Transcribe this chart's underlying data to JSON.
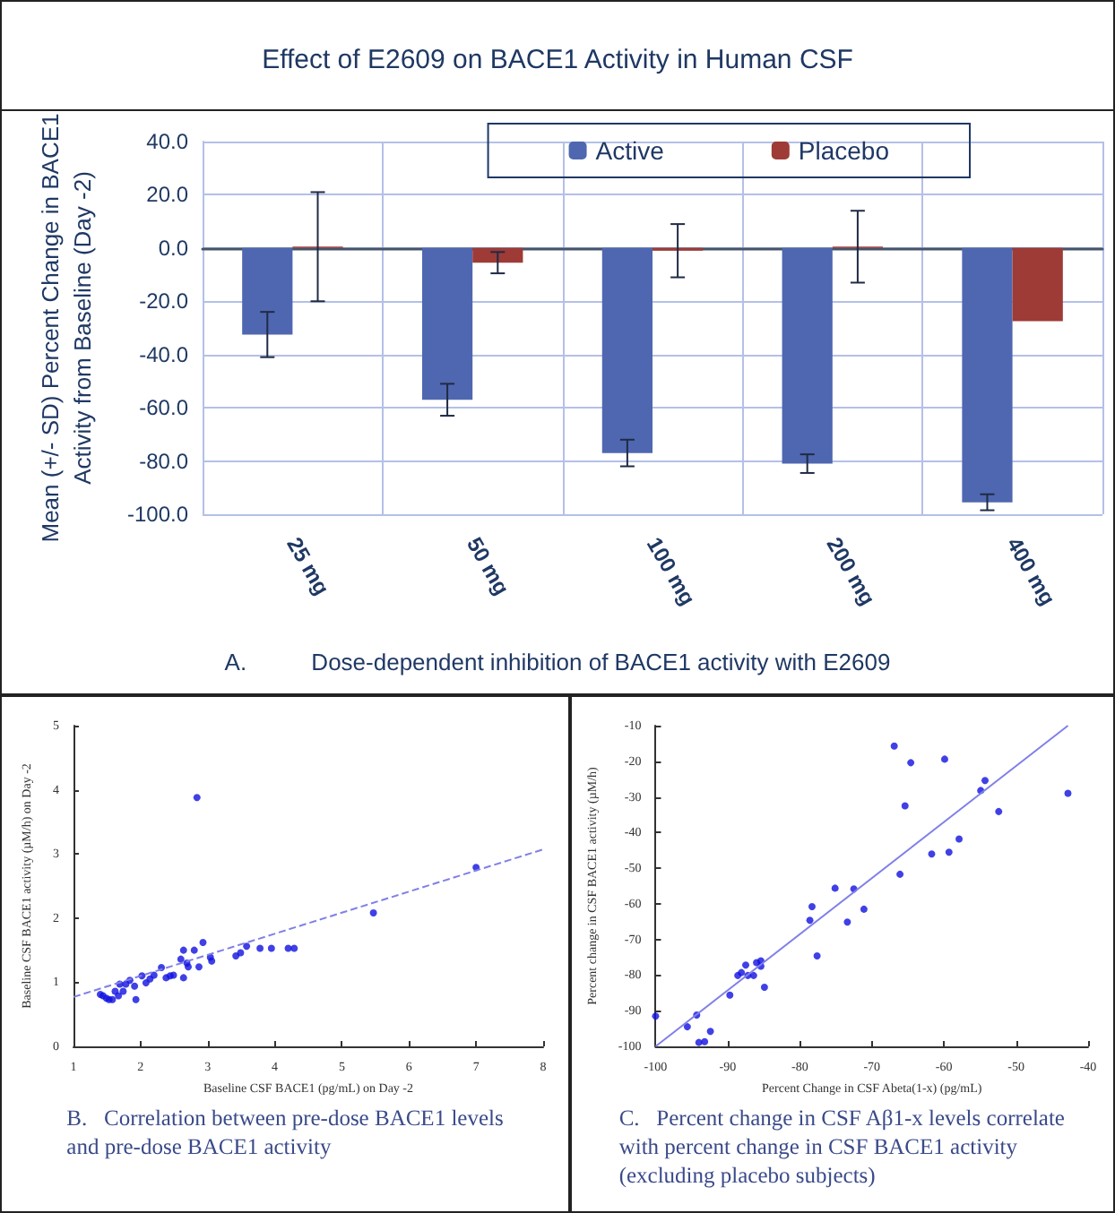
{
  "chart_data": [
    {
      "type": "bar",
      "title": "Effect of E2609 on BACE1 Activity in Human CSF",
      "ylabel": "Mean (+/- SD) Percent Change in BACE1\nActivity from Baseline (Day -2)",
      "categories": [
        "25 mg",
        "50 mg",
        "100 mg",
        "200 mg",
        "400 mg"
      ],
      "series": [
        {
          "name": "Active",
          "color": "#4f67b0",
          "values": [
            -32.5,
            -57,
            -77,
            -81,
            -95.5
          ],
          "errors": [
            8.5,
            6,
            5,
            3.5,
            3
          ]
        },
        {
          "name": "Placebo",
          "color": "#9e3b36",
          "values": [
            0.5,
            -5.5,
            -1,
            0.5,
            -27.5
          ],
          "errors": [
            20.5,
            4,
            10,
            13.5,
            null
          ]
        }
      ],
      "ylim": [
        -100,
        40
      ],
      "yticks": [
        {
          "value": -100,
          "label": "-100.0"
        },
        {
          "value": -80,
          "label": "-80.0"
        },
        {
          "value": -60,
          "label": "-60.0"
        },
        {
          "value": -40,
          "label": "-40.0"
        },
        {
          "value": -20,
          "label": "-20.0"
        },
        {
          "value": 0,
          "label": "0.0"
        },
        {
          "value": 20,
          "label": "20.0"
        },
        {
          "value": 40,
          "label": "40.0"
        }
      ],
      "grid": true,
      "legend": "top right",
      "annotations": [
        "A.          Dose-dependent inhibition of BACE1 activity with E2609"
      ]
    },
    {
      "type": "scatter",
      "xlabel": "Baseline CSF BACE1 (pg/mL) on Day -2",
      "ylabel": "Baseline CSF BACE1 activity (µM/h) on Day -2",
      "series": [
        {
          "type": "scatter",
          "marker": "circle",
          "color": "#1010e0",
          "x": [
            1.4,
            1.44,
            1.49,
            1.53,
            1.58,
            1.62,
            1.67,
            1.69,
            1.74,
            1.78,
            1.84,
            1.91,
            1.93,
            2.02,
            2.08,
            2.14,
            2.2,
            2.31,
            2.38,
            2.44,
            2.49,
            2.6,
            2.64,
            2.64,
            2.69,
            2.71,
            2.8,
            2.84,
            2.87,
            2.93,
            3.04,
            3.06,
            3.42,
            3.49,
            3.58,
            3.78,
            3.95,
            4.2,
            4.29,
            5.47,
            7.0
          ],
          "values": [
            0.81,
            0.79,
            0.75,
            0.73,
            0.73,
            0.86,
            0.79,
            0.97,
            0.86,
            0.97,
            1.03,
            0.94,
            0.73,
            1.1,
            0.99,
            1.05,
            1.11,
            1.23,
            1.07,
            1.1,
            1.11,
            1.36,
            1.5,
            1.07,
            1.3,
            1.24,
            1.5,
            3.88,
            1.24,
            1.62,
            1.39,
            1.33,
            1.41,
            1.46,
            1.56,
            1.53,
            1.53,
            1.53,
            1.53,
            2.08,
            2.79
          ]
        },
        {
          "type": "line",
          "marker": "none",
          "color": "#8080e8",
          "line_style": "dashed",
          "x": [
            1,
            8
          ],
          "values": [
            0.77,
            3.07
          ]
        }
      ],
      "xlim": [
        1,
        8
      ],
      "xticks": [
        1,
        2,
        3,
        4,
        5,
        6,
        7,
        8
      ],
      "ylim": [
        0,
        5
      ],
      "yticks": [
        0,
        1,
        2,
        3,
        4,
        5
      ],
      "grid": false,
      "annotations": [
        "B.   Correlation between pre-dose BACE1 levels\nand pre-dose BACE1 activity"
      ]
    },
    {
      "type": "scatter",
      "xlabel": "Percent Change in CSF Abeta(1-x) (pg/mL)",
      "ylabel": "Percent change in CSF BACE1 activity (µM/h)",
      "series": [
        {
          "type": "scatter",
          "marker": "circle",
          "color": "#1010e0",
          "x": [
            -100,
            -95.6,
            -94.3,
            -94.0,
            -93.2,
            -92.4,
            -89.7,
            -88.6,
            -88.1,
            -87.5,
            -87.2,
            -86.4,
            -86.0,
            -85.4,
            -85.4,
            -84.9,
            -78.6,
            -78.3,
            -77.6,
            -75.1,
            -73.4,
            -72.5,
            -71.1,
            -66.9,
            -66.1,
            -65.4,
            -64.6,
            -61.7,
            -59.9,
            -59.3,
            -57.9,
            -54.9,
            -54.3,
            -52.4,
            -42.8
          ],
          "values": [
            -91.5,
            -94.5,
            -91.2,
            -98.9,
            -98.7,
            -95.8,
            -85.6,
            -80.1,
            -79.3,
            -77.2,
            -80.1,
            -80.1,
            -76.5,
            -76.0,
            -77.5,
            -83.4,
            -64.6,
            -60.8,
            -74.6,
            -55.6,
            -65.1,
            -55.8,
            -61.5,
            -15.7,
            -51.7,
            -32.5,
            -20.4,
            -46.0,
            -19.4,
            -45.5,
            -41.8,
            -28.2,
            -25.4,
            -34.1,
            -29.0
          ]
        },
        {
          "type": "line",
          "marker": "none",
          "color": "#8080e8",
          "line_style": "solid",
          "x": [
            -100,
            -42.8
          ],
          "values": [
            -100,
            -10
          ]
        }
      ],
      "xlim": [
        -100,
        -40
      ],
      "xticks": [
        -100,
        -90,
        -80,
        -70,
        -60,
        -50,
        -40
      ],
      "ylim": [
        -100,
        -10
      ],
      "yticks": [
        -100,
        -90,
        -80,
        -70,
        -60,
        -50,
        -40,
        -30,
        -20,
        -10
      ],
      "grid": false,
      "annotations": [
        "C.   Percent change in CSF Aβ1-x levels correlate\nwith percent change in CSF BACE1 activity\n(excluding placebo subjects)"
      ]
    }
  ]
}
